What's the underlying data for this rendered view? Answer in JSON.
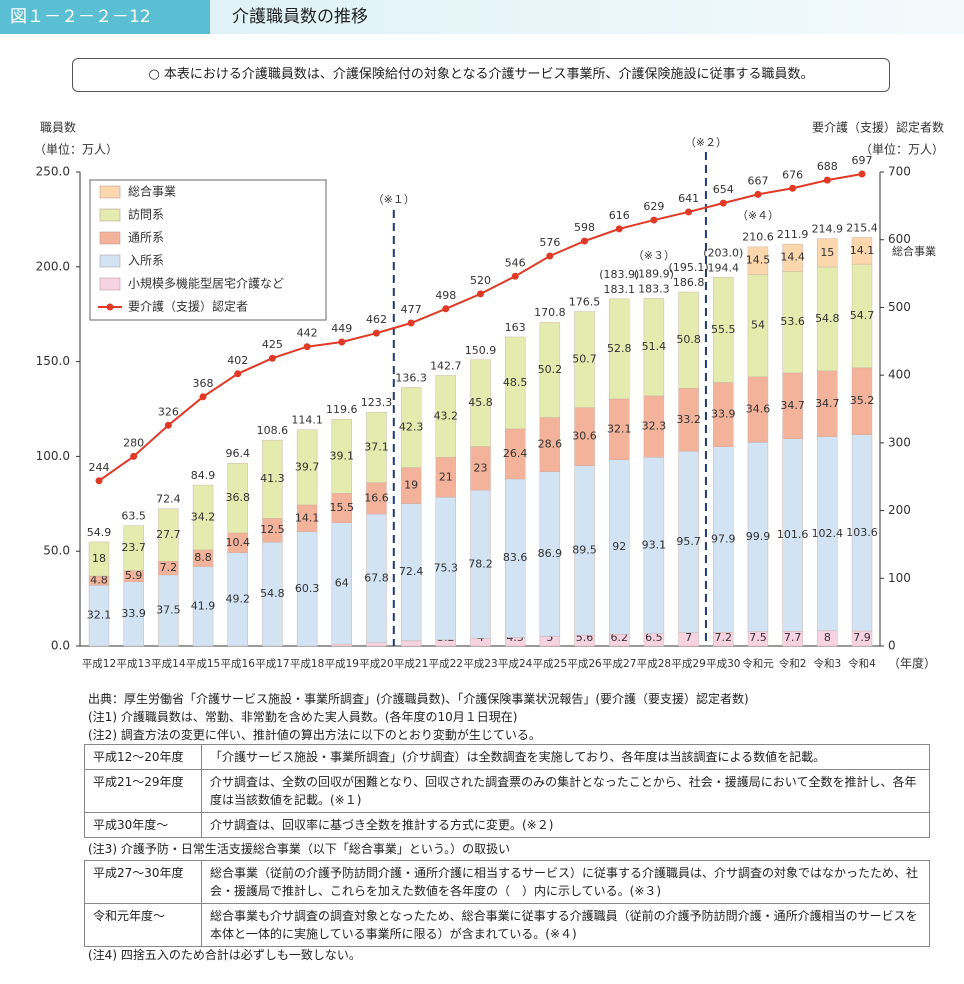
{
  "header": {
    "figure_no": "図１－２－２－12",
    "title": "介護職員数の推移"
  },
  "note_box": "○ 本表における介護職員数は、介護保険給付の対象となる介護サービス事業所、介護保険施設に従事する職員数。",
  "chart_data": {
    "type": "bar",
    "stacked": true,
    "y_label": "職員数",
    "y_unit": "（単位：万人）",
    "y2_label": "要介護（支援）認定者数",
    "y2_unit": "（単位：万人）",
    "x_unit": "（年度）",
    "categories": [
      "平成12",
      "平成13",
      "平成14",
      "平成15",
      "平成16",
      "平成17",
      "平成18",
      "平成19",
      "平成20",
      "平成21",
      "平成22",
      "平成23",
      "平成24",
      "平成25",
      "平成26",
      "平成27",
      "平成28",
      "平成29",
      "平成30",
      "令和元",
      "令和2",
      "令和3",
      "令和4"
    ],
    "series": [
      {
        "name": "総合事業",
        "color": "#fbd7ad",
        "values": [
          null,
          null,
          null,
          null,
          null,
          null,
          null,
          null,
          null,
          null,
          null,
          null,
          null,
          null,
          null,
          null,
          null,
          null,
          null,
          14.5,
          14.4,
          15.0,
          14.1
        ]
      },
      {
        "name": "訪問系",
        "color": "#e3ecae",
        "values": [
          18.0,
          23.7,
          27.7,
          34.2,
          36.8,
          41.3,
          39.7,
          39.1,
          37.1,
          42.3,
          43.2,
          45.8,
          48.5,
          50.2,
          50.7,
          52.8,
          51.4,
          50.8,
          55.5,
          54.0,
          53.6,
          54.8,
          54.7
        ]
      },
      {
        "name": "通所系",
        "color": "#f3b39b",
        "values": [
          4.8,
          5.9,
          7.2,
          8.8,
          10.4,
          12.5,
          14.1,
          15.5,
          16.6,
          19.0,
          21.0,
          23.0,
          26.4,
          28.6,
          30.6,
          32.1,
          32.3,
          33.2,
          33.9,
          34.6,
          34.7,
          34.7,
          35.2
        ]
      },
      {
        "name": "入所系",
        "color": "#d2e3f4",
        "values": [
          32.1,
          33.9,
          37.5,
          41.9,
          49.2,
          54.8,
          60.3,
          64.0,
          67.8,
          72.4,
          75.3,
          78.2,
          83.6,
          86.9,
          89.5,
          92.0,
          93.1,
          95.7,
          97.9,
          99.9,
          101.6,
          102.4,
          103.6
        ]
      },
      {
        "name": "小規模多機能型居宅介護など",
        "color": "#f7d3e2",
        "values": [
          null,
          null,
          null,
          null,
          null,
          null,
          null,
          1.0,
          1.8,
          2.7,
          3.2,
          4.0,
          4.5,
          5.0,
          5.6,
          6.2,
          6.5,
          7.0,
          7.2,
          7.5,
          7.7,
          8.0,
          7.9
        ]
      },
      {
        "name": "要介護（支援）認定者",
        "type": "line",
        "axis": "y2",
        "color": "#e03a26",
        "values": [
          244,
          280,
          326,
          368,
          402,
          425,
          442,
          449,
          462,
          477,
          498,
          520,
          546,
          576,
          598,
          616,
          629,
          641,
          654,
          667,
          676,
          688,
          697
        ]
      }
    ],
    "totals": [
      54.9,
      63.5,
      72.4,
      84.9,
      96.4,
      108.6,
      114.1,
      119.6,
      123.3,
      136.3,
      142.7,
      150.9,
      163.0,
      170.8,
      176.5,
      183.1,
      183.3,
      186.8,
      194.4,
      210.6,
      211.9,
      214.9,
      215.4
    ],
    "adjusted_totals": {
      "values": [
        null,
        null,
        null,
        null,
        null,
        null,
        null,
        null,
        null,
        null,
        null,
        null,
        null,
        null,
        null,
        183.9,
        189.9,
        195.1,
        203.0,
        null,
        null,
        null,
        null
      ],
      "value_labels": [
        null,
        null,
        null,
        null,
        null,
        null,
        null,
        null,
        null,
        null,
        null,
        null,
        null,
        null,
        null,
        "(183.9)",
        "(189.9)",
        "(195.1)",
        "(203.0)",
        null,
        null,
        null,
        null
      ]
    },
    "annotations": [
      "（※１）",
      "（※２）",
      "（※３）",
      "（※４）",
      "総合事業"
    ],
    "ylim": [
      0,
      250
    ],
    "yticks": [
      {
        "value": 0,
        "label": "0.0"
      },
      {
        "value": 50,
        "label": "50.0"
      },
      {
        "value": 100,
        "label": "100.0"
      },
      {
        "value": 150,
        "label": "150.0"
      },
      {
        "value": 200,
        "label": "200.0"
      },
      {
        "value": 250,
        "label": "250.0"
      }
    ],
    "y2lim": [
      0,
      700
    ],
    "y2ticks": [
      0,
      100,
      200,
      300,
      400,
      500,
      600,
      700
    ],
    "legend": "upper-left"
  },
  "notes": {
    "source": "出典：厚生労働省「介護サービス施設・事業所調査」(介護職員数)、「介護保険事業状況報告」(要介護（要支援）認定者数)",
    "note1": "(注1) 介護職員数は、常勤、非常勤を含めた実人員数。(各年度の10月１日現在)",
    "note2": "(注2) 調査方法の変更に伴い、推計値の算出方法に以下のとおり変動が生じている。",
    "table1": [
      [
        "平成12～20年度",
        "「介護サービス施設・事業所調査」(介サ調査）は全数調査を実施しており、各年度は当該調査による数値を記載。"
      ],
      [
        "平成21～29年度",
        "介サ調査は、全数の回収が困難となり、回収された調査票のみの集計となったことから、社会・援護局において全数を推計し、各年度は当該数値を記載。(※１)"
      ],
      [
        "平成30年度～",
        "介サ調査は、回収率に基づき全数を推計する方式に変更。(※２)"
      ]
    ],
    "note3": "(注3) 介護予防・日常生活支援総合事業（以下「総合事業」という。）の取扱い",
    "table2": [
      [
        "平成27～30年度",
        "総合事業（従前の介護予防訪問介護・通所介護に相当するサービス）に従事する介護職員は、介サ調査の対象ではなかったため、社会・援護局で推計し、これらを加えた数値を各年度の（　）内に示している。(※３)"
      ],
      [
        "令和元年度～",
        "総合事業も介サ調査の調査対象となったため、総合事業に従事する介護職員（従前の介護予防訪問介護・通所介護相当のサービスを本体と一体的に実施している事業所に限る）が含まれている。(※４)"
      ]
    ],
    "note4": "(注4) 四捨五入のため合計は必ずしも一致しない。"
  }
}
